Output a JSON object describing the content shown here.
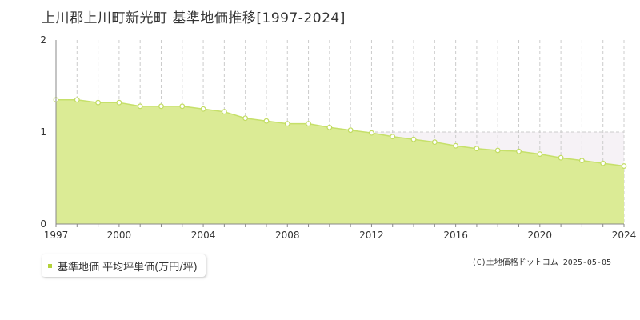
{
  "title": "上川郡上川町新光町 基準地価推移[1997-2024]",
  "legend_label": "基準地価 平均坪単価(万円/坪)",
  "credit": "(C)土地価格ドットコム 2025-05-05",
  "colors": {
    "fill": "#dbeb95",
    "line": "#c6e06a",
    "point_stroke": "#c2dc62",
    "legend": "#b4d23a",
    "grid": "#cccccc",
    "axis": "#888888",
    "band": "#f6f2f6"
  },
  "chart_data": {
    "type": "area",
    "title": "上川郡上川町新光町 基準地価推移[1997-2024]",
    "xlabel": "",
    "ylabel": "",
    "x": [
      1997,
      1998,
      1999,
      2000,
      2001,
      2002,
      2003,
      2004,
      2005,
      2006,
      2007,
      2008,
      2009,
      2010,
      2011,
      2012,
      2013,
      2014,
      2015,
      2016,
      2017,
      2018,
      2019,
      2020,
      2021,
      2022,
      2023,
      2024
    ],
    "series": [
      {
        "name": "基準地価 平均坪単価(万円/坪)",
        "values": [
          1.35,
          1.35,
          1.32,
          1.32,
          1.28,
          1.28,
          1.28,
          1.25,
          1.22,
          1.15,
          1.12,
          1.09,
          1.09,
          1.05,
          1.02,
          0.99,
          0.95,
          0.92,
          0.89,
          0.85,
          0.82,
          0.8,
          0.79,
          0.76,
          0.72,
          0.69,
          0.66,
          0.63
        ]
      }
    ],
    "xlim": [
      1997,
      2024
    ],
    "ylim": [
      0,
      2
    ],
    "x_tick_labels": [
      "1997",
      "2000",
      "2004",
      "2008",
      "2012",
      "2016",
      "2020",
      "2024"
    ],
    "y_tick_labels": [
      "0",
      "1",
      "2"
    ],
    "grid": true,
    "legend": "bottom-left"
  }
}
